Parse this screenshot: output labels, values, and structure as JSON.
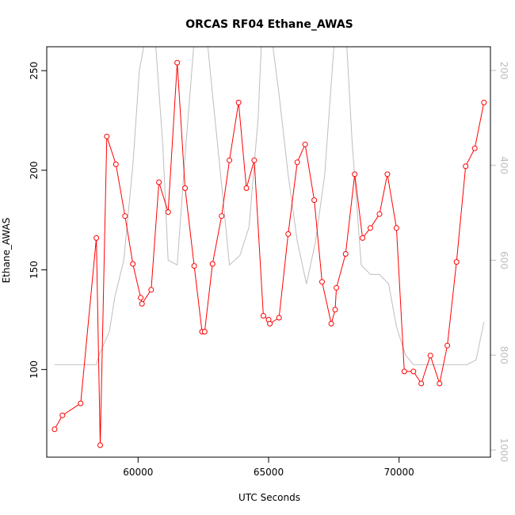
{
  "chart_data": {
    "type": "line",
    "title": "ORCAS RF04 Ethane_AWAS",
    "xlabel": "UTC Seconds",
    "ylabel": "Ethane_AWAS",
    "xlim": [
      56500,
      73500
    ],
    "ylim": [
      56,
      262
    ],
    "y2lim": [
      1015,
      150
    ],
    "x_ticks": [
      60000,
      65000,
      70000
    ],
    "x_tick_labels": [
      "60000",
      "65000",
      "70000"
    ],
    "y_ticks": [
      100,
      150,
      200,
      250
    ],
    "y_tick_labels": [
      "100",
      "150",
      "200",
      "250"
    ],
    "y2_ticks": [
      200,
      400,
      600,
      800,
      1000
    ],
    "y2_tick_labels": [
      "200",
      "400",
      "600",
      "800",
      "1000"
    ],
    "colors": {
      "ethane": "#ff0000",
      "secondary": "#bebebe"
    },
    "series": [
      {
        "axis": "left",
        "marker": "circle",
        "x": [
          56800,
          57100,
          57800,
          58400,
          58550,
          58800,
          59150,
          59500,
          59800,
          60100,
          60150,
          60500,
          60800,
          61150,
          61500,
          61800,
          62150,
          62450,
          62550,
          62850,
          63200,
          63500,
          63850,
          64150,
          64450,
          64800,
          65000,
          65050,
          65400,
          65750,
          66100,
          66400,
          66750,
          67050,
          67400,
          67550,
          67600,
          67950,
          68300,
          68600,
          68900,
          69250,
          69550,
          69900,
          70200,
          70550,
          70850,
          71200,
          71550,
          71850,
          72200,
          72550,
          72900,
          73250
        ],
        "values": [
          70,
          77,
          83,
          166,
          62,
          217,
          203,
          177,
          153,
          136,
          133,
          140,
          194,
          179,
          254,
          191,
          152,
          119,
          119,
          153,
          177,
          205,
          234,
          191,
          205,
          127,
          125,
          123,
          126,
          168,
          204,
          213,
          185,
          144,
          123,
          130,
          141,
          158,
          198,
          166,
          171,
          178,
          198,
          171,
          99,
          99,
          93,
          107,
          93,
          112,
          154,
          202,
          211,
          234
        ]
      },
      {
        "axis": "right",
        "marker": "none",
        "x": [
          56800,
          57800,
          58400,
          58500,
          58900,
          59100,
          59450,
          59800,
          60050,
          60550,
          60950,
          61150,
          61500,
          61800,
          62200,
          62550,
          62850,
          63200,
          63500,
          63900,
          64250,
          64600,
          64800,
          65050,
          65400,
          65750,
          66100,
          66450,
          66800,
          67150,
          67500,
          67900,
          68200,
          68550,
          68900,
          69250,
          69600,
          69900,
          70250,
          70550,
          70900,
          71200,
          71600,
          71900,
          72250,
          72600,
          72950,
          73250
        ],
        "values": [
          820,
          820,
          820,
          800,
          750,
          680,
          600,
          400,
          200,
          50,
          360,
          600,
          610,
          380,
          100,
          80,
          250,
          440,
          610,
          590,
          530,
          300,
          50,
          100,
          250,
          420,
          560,
          650,
          560,
          420,
          150,
          50,
          350,
          610,
          630,
          630,
          650,
          740,
          800,
          820,
          820,
          820,
          820,
          820,
          820,
          820,
          810,
          730
        ]
      }
    ]
  }
}
